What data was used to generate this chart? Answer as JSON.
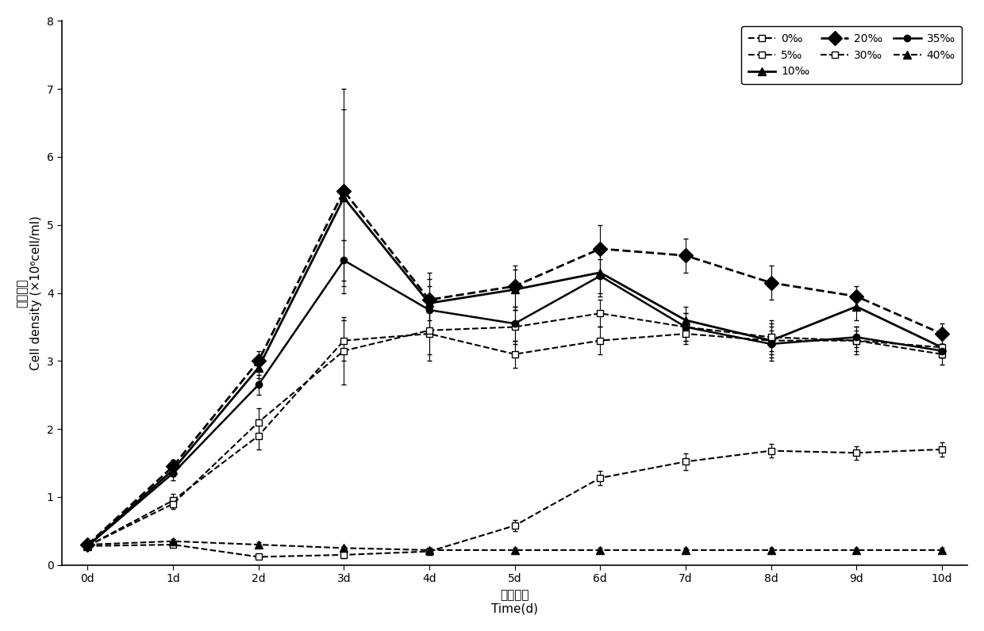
{
  "x_values": [
    0,
    1,
    2,
    3,
    4,
    5,
    6,
    7,
    8,
    9,
    10
  ],
  "x_labels": [
    "0d",
    "1d",
    "2d",
    "3d",
    "4d",
    "5d",
    "6d",
    "7d",
    "8d",
    "9d",
    "10d"
  ],
  "series": [
    {
      "label": "0‰",
      "y": [
        0.28,
        0.3,
        0.12,
        0.15,
        0.2,
        0.58,
        1.28,
        1.52,
        1.68,
        1.65,
        1.7
      ],
      "yerr": [
        0.03,
        0.03,
        0.03,
        0.05,
        0.05,
        0.08,
        0.1,
        0.12,
        0.1,
        0.1,
        0.1
      ],
      "linestyle": "--",
      "marker": "s",
      "markersize": 6,
      "markerfilled": false,
      "linewidth": 1.5,
      "dashes": [
        4,
        3
      ]
    },
    {
      "label": "5‰",
      "y": [
        0.28,
        0.95,
        1.9,
        3.3,
        3.4,
        3.1,
        3.3,
        3.4,
        3.3,
        3.3,
        3.1
      ],
      "yerr": [
        0.03,
        0.1,
        0.2,
        0.3,
        0.4,
        0.2,
        0.2,
        0.15,
        0.3,
        0.2,
        0.15
      ],
      "linestyle": "--",
      "marker": "s",
      "markersize": 6,
      "markerfilled": false,
      "linewidth": 1.5,
      "dashes": [
        6,
        3
      ]
    },
    {
      "label": "10‰",
      "y": [
        0.28,
        1.4,
        2.9,
        5.4,
        3.85,
        4.05,
        4.3,
        3.6,
        3.3,
        3.8,
        3.2
      ],
      "yerr": [
        0.03,
        0.1,
        0.15,
        1.3,
        0.45,
        0.3,
        0.35,
        0.2,
        0.2,
        0.2,
        0.15
      ],
      "linestyle": "-",
      "marker": "^",
      "markersize": 7,
      "markerfilled": true,
      "linewidth": 2.0,
      "dashes": []
    },
    {
      "label": "20‰",
      "y": [
        0.3,
        1.45,
        3.0,
        5.5,
        3.9,
        4.1,
        4.65,
        4.55,
        4.15,
        3.95,
        3.4
      ],
      "yerr": [
        0.03,
        0.1,
        0.15,
        1.5,
        0.3,
        0.3,
        0.35,
        0.25,
        0.25,
        0.15,
        0.15
      ],
      "linestyle": "--",
      "marker": "D",
      "markersize": 9,
      "markerfilled": true,
      "linewidth": 2.0,
      "dashes": [
        8,
        3
      ]
    },
    {
      "label": "30‰",
      "y": [
        0.28,
        0.9,
        2.1,
        3.15,
        3.45,
        3.5,
        3.7,
        3.5,
        3.35,
        3.3,
        3.2
      ],
      "yerr": [
        0.03,
        0.08,
        0.2,
        0.5,
        0.35,
        0.25,
        0.2,
        0.2,
        0.2,
        0.15,
        0.15
      ],
      "linestyle": "--",
      "marker": "s",
      "markersize": 6,
      "markerfilled": false,
      "linewidth": 1.5,
      "dashes": [
        3,
        3,
        8,
        3
      ]
    },
    {
      "label": "35‰",
      "y": [
        0.28,
        1.35,
        2.65,
        4.48,
        3.75,
        3.55,
        4.25,
        3.5,
        3.25,
        3.35,
        3.15
      ],
      "yerr": [
        0.03,
        0.1,
        0.15,
        0.3,
        0.35,
        0.25,
        0.25,
        0.2,
        0.2,
        0.15,
        0.1
      ],
      "linestyle": "-",
      "marker": "o",
      "markersize": 6,
      "markerfilled": true,
      "linewidth": 1.8,
      "dashes": []
    },
    {
      "label": "40‰",
      "y": [
        0.3,
        0.35,
        0.3,
        0.25,
        0.22,
        0.22,
        0.22,
        0.22,
        0.22,
        0.22,
        0.22
      ],
      "yerr": [
        0.03,
        0.03,
        0.03,
        0.03,
        0.03,
        0.03,
        0.03,
        0.03,
        0.03,
        0.03,
        0.03
      ],
      "linestyle": "--",
      "marker": "^",
      "markersize": 7,
      "markerfilled": true,
      "linewidth": 1.5,
      "dashes": [
        5,
        3
      ]
    }
  ],
  "xlabel_zh": "培养时间",
  "xlabel_en": "Time(d)",
  "ylabel_zh": "浓度细胞",
  "ylabel_en": "Cell density (×10⁶cell/ml)",
  "ylim": [
    0,
    8
  ],
  "yticks": [
    0,
    1,
    2,
    3,
    4,
    5,
    6,
    7,
    8
  ],
  "background_color": "#ffffff",
  "label_fontsize": 11,
  "tick_fontsize": 10,
  "legend_fontsize": 10
}
